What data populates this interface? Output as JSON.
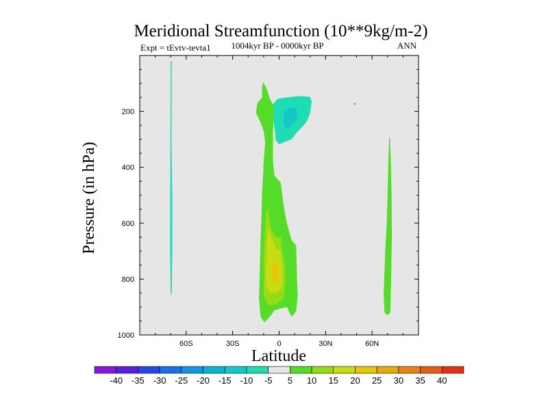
{
  "chart_data": {
    "type": "contour",
    "title": "Meridional Streamfunction (10**9kg/m-2)",
    "subtitle": "1004kyr BP - 0000kyr BP",
    "left_label": "Expt = tEvtv-tevta1",
    "right_label": "ANN",
    "xlabel": "Latitude",
    "ylabel": "Pressure (in hPa)",
    "xlim": [
      -90,
      90
    ],
    "ylim": [
      0,
      1000
    ],
    "y_reversed": true,
    "x_ticks": [
      {
        "value": -60,
        "label": "60S"
      },
      {
        "value": -30,
        "label": "30S"
      },
      {
        "value": 0,
        "label": "0"
      },
      {
        "value": 30,
        "label": "30N"
      },
      {
        "value": 60,
        "label": "60N"
      }
    ],
    "y_ticks": [
      {
        "value": 200,
        "label": "200"
      },
      {
        "value": 400,
        "label": "400"
      },
      {
        "value": 600,
        "label": "600"
      },
      {
        "value": 800,
        "label": "800"
      },
      {
        "value": 1000,
        "label": "1000"
      }
    ],
    "background_color": "#e6e6e6",
    "colorbar": {
      "levels": [
        "-40",
        "-35",
        "-30",
        "-25",
        "-20",
        "-15",
        "-10",
        "-5",
        "5",
        "10",
        "15",
        "20",
        "25",
        "30",
        "35",
        "40"
      ],
      "colors": [
        "#8a14e0",
        "#5a1ee0",
        "#2846e6",
        "#1e6ee6",
        "#1496e6",
        "#0ab4d2",
        "#12c8c8",
        "#1edcb4",
        "#e6e6e6",
        "#55dc28",
        "#96dc14",
        "#c8dc14",
        "#e6c80a",
        "#e6aa0a",
        "#e68214",
        "#e65a14",
        "#e63214"
      ]
    },
    "regions": [
      {
        "name": "sh-high-lat-negative",
        "band": "-10..-5",
        "color": "#1edcb4",
        "points": [
          [
            -70,
            20
          ],
          [
            -69.3,
            20
          ],
          [
            -69.5,
            300
          ],
          [
            -69,
            500
          ],
          [
            -69,
            700
          ],
          [
            -69.3,
            850
          ],
          [
            -70,
            860
          ],
          [
            -70.4,
            700
          ],
          [
            -70.3,
            500
          ],
          [
            -70.2,
            300
          ]
        ]
      },
      {
        "name": "upper-trop-negative-outer",
        "band": "-10..-5",
        "color": "#1edcb4",
        "points": [
          [
            -4,
            200
          ],
          [
            -4,
            175
          ],
          [
            -1,
            155
          ],
          [
            5,
            150
          ],
          [
            13,
            145
          ],
          [
            20,
            148
          ],
          [
            21,
            165
          ],
          [
            20,
            205
          ],
          [
            18,
            235
          ],
          [
            15,
            255
          ],
          [
            11,
            278
          ],
          [
            8,
            300
          ],
          [
            4,
            308
          ],
          [
            0,
            318
          ],
          [
            -2,
            305
          ],
          [
            -3.5,
            240
          ]
        ]
      },
      {
        "name": "upper-trop-negative-inner",
        "band": "-15..-10",
        "color": "#12c8c8",
        "points": [
          [
            3,
            200
          ],
          [
            7,
            185
          ],
          [
            11,
            190
          ],
          [
            12,
            215
          ],
          [
            10,
            240
          ],
          [
            7,
            255
          ],
          [
            5,
            265
          ],
          [
            3,
            245
          ]
        ]
      },
      {
        "name": "main-positive-5-10",
        "band": "5..10",
        "color": "#55dc28",
        "points": [
          [
            -11,
            150
          ],
          [
            -11,
            110
          ],
          [
            -10.3,
            95
          ],
          [
            -8,
            120
          ],
          [
            -6,
            155
          ],
          [
            -3.5,
            180
          ],
          [
            -4,
            280
          ],
          [
            -4,
            380
          ],
          [
            -3,
            430
          ],
          [
            1,
            455
          ],
          [
            3,
            540
          ],
          [
            5,
            600
          ],
          [
            8,
            660
          ],
          [
            11,
            680
          ],
          [
            11.5,
            800
          ],
          [
            12,
            860
          ],
          [
            11,
            915
          ],
          [
            8,
            935
          ],
          [
            5,
            900
          ],
          [
            1,
            905
          ],
          [
            -3,
            912
          ],
          [
            -6,
            935
          ],
          [
            -9.5,
            955
          ],
          [
            -12,
            935
          ],
          [
            -13,
            870
          ],
          [
            -12.5,
            780
          ],
          [
            -12,
            660
          ],
          [
            -11.3,
            560
          ],
          [
            -11,
            490
          ],
          [
            -10.3,
            420
          ],
          [
            -10,
            380
          ],
          [
            -9,
            310
          ],
          [
            -10,
            270
          ],
          [
            -12,
            240
          ],
          [
            -15,
            205
          ],
          [
            -14,
            170
          ]
        ]
      },
      {
        "name": "main-positive-10-15",
        "band": "10..15",
        "color": "#96dc14",
        "points": [
          [
            -7,
            545
          ],
          [
            -7,
            565
          ],
          [
            -5,
            620
          ],
          [
            -2,
            650
          ],
          [
            1,
            650
          ],
          [
            2,
            700
          ],
          [
            4,
            760
          ],
          [
            4,
            815
          ],
          [
            3,
            870
          ],
          [
            -2,
            890
          ],
          [
            -7,
            895
          ],
          [
            -10,
            860
          ],
          [
            -10,
            780
          ],
          [
            -9.8,
            700
          ],
          [
            -9,
            620
          ],
          [
            -8.5,
            560
          ]
        ]
      },
      {
        "name": "main-positive-15-20",
        "band": "15..20",
        "color": "#c8dc14",
        "points": [
          [
            -7,
            610
          ],
          [
            -5,
            650
          ],
          [
            -2,
            690
          ],
          [
            1,
            700
          ],
          [
            2,
            760
          ],
          [
            2.3,
            800
          ],
          [
            1.5,
            835
          ],
          [
            -2,
            850
          ],
          [
            -6,
            850
          ],
          [
            -8.5,
            820
          ],
          [
            -8.5,
            750
          ],
          [
            -8,
            680
          ]
        ]
      },
      {
        "name": "main-positive-20-25",
        "band": "20..25",
        "color": "#e6c80a",
        "points": [
          [
            -2.8,
            735
          ],
          [
            -0.7,
            747
          ],
          [
            -0.3,
            780
          ],
          [
            -1.2,
            810
          ],
          [
            -3.5,
            815
          ],
          [
            -5.3,
            798
          ],
          [
            -5.2,
            770
          ],
          [
            -4.5,
            748
          ]
        ]
      },
      {
        "name": "nh-high-lat-positive",
        "band": "5..10",
        "color": "#55dc28",
        "points": [
          [
            71.5,
            290
          ],
          [
            72,
            360
          ],
          [
            72.6,
            500
          ],
          [
            72.8,
            650
          ],
          [
            72.3,
            800
          ],
          [
            71.8,
            920
          ],
          [
            70,
            930
          ],
          [
            68,
            920
          ],
          [
            67.5,
            850
          ],
          [
            68.5,
            700
          ],
          [
            69.5,
            600
          ],
          [
            70,
            500
          ],
          [
            70.5,
            380
          ],
          [
            71,
            300
          ]
        ]
      },
      {
        "name": "speck",
        "band": "5..10",
        "color": "#55dc28",
        "points": [
          [
            48,
            170
          ],
          [
            49,
            168
          ],
          [
            49.5,
            175
          ],
          [
            48.5,
            178
          ]
        ]
      }
    ]
  }
}
